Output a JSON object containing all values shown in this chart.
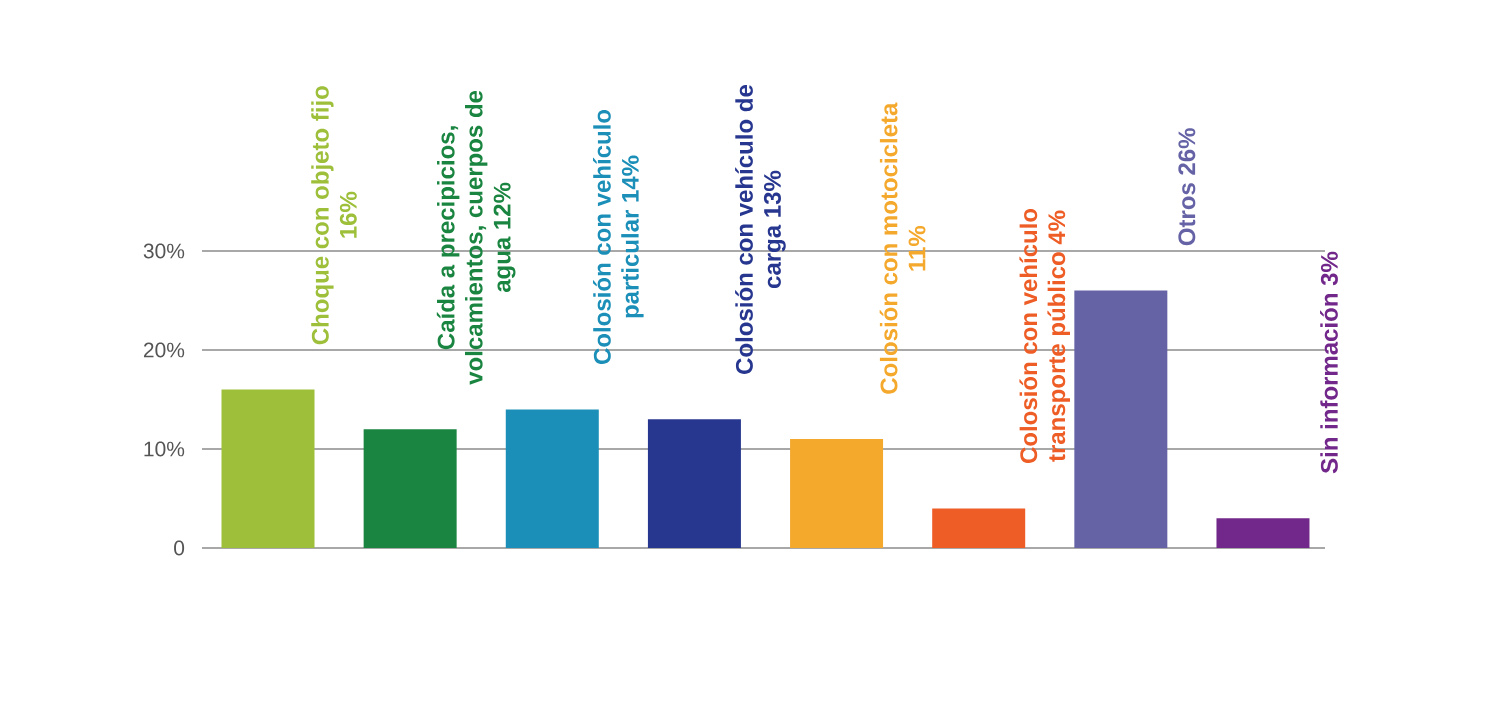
{
  "chart_data": {
    "type": "bar",
    "categories": [
      "Choque con objeto fijo 16%",
      "Caída a precipicios, volcamientos, cuerpos de agua 12%",
      "Colosión con vehículo particular 14%",
      "Colosión con vehículo de carga 13%",
      "Colosión con motocicleta 11%",
      "Colosión con vehículo transporte público 4%",
      "Otros 26%",
      "Sin información 3%"
    ],
    "values": [
      16,
      12,
      14,
      13,
      11,
      4,
      26,
      3
    ],
    "colors": [
      "#9dbf3a",
      "#1a8540",
      "#1b8fb8",
      "#27378f",
      "#f4a82c",
      "#ee5d26",
      "#6563a6",
      "#72288a"
    ],
    "ylim": [
      0,
      30
    ],
    "yticks": [
      0,
      {
        "value": 10,
        "label": "10%"
      },
      {
        "value": 20,
        "label": "20%"
      },
      {
        "value": 30,
        "label": "30%"
      }
    ],
    "grid": "y"
  }
}
